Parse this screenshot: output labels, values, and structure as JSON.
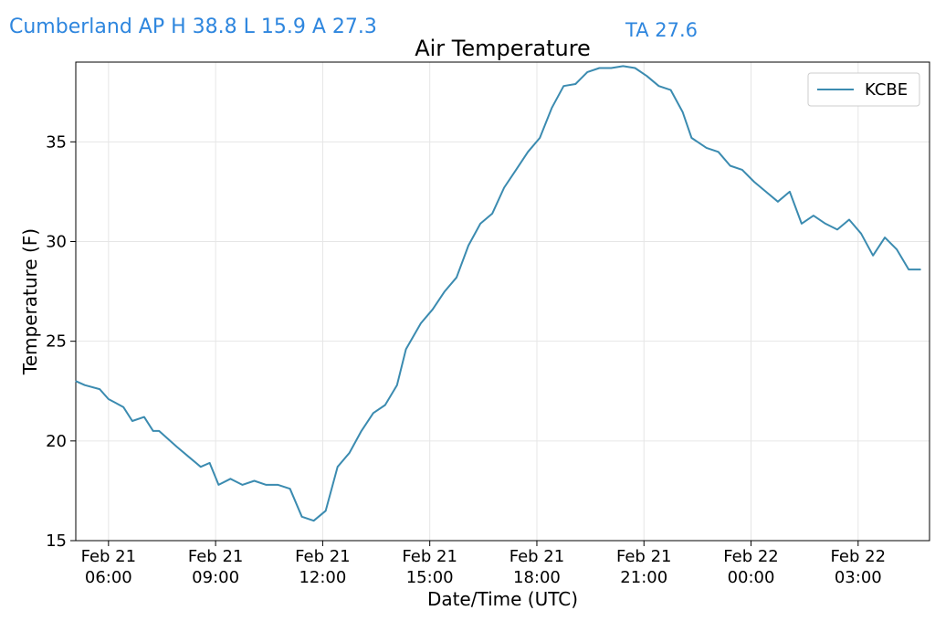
{
  "header": {
    "stats_line": "Cumberland AP H 38.8 L 15.9 A 27.3",
    "ta_line": "TA 27.6"
  },
  "colors": {
    "header_text": "#2e86de",
    "series_line": "#3b8bb0",
    "grid": "#e6e6e6"
  },
  "chart_data": {
    "type": "line",
    "title": "Air Temperature",
    "xlabel": "Date/Time (UTC)",
    "ylabel": "Temperature (F)",
    "grid": true,
    "legend_position": "top-right",
    "ylim": [
      15,
      39
    ],
    "xlim": [
      "2021-02-21 05:05",
      "2021-02-22 05:00"
    ],
    "y_ticks": [
      15,
      20,
      25,
      30,
      35
    ],
    "x_ticks": [
      {
        "time": "2021-02-21 06:00",
        "line1": "Feb 21",
        "line2": "06:00"
      },
      {
        "time": "2021-02-21 09:00",
        "line1": "Feb 21",
        "line2": "09:00"
      },
      {
        "time": "2021-02-21 12:00",
        "line1": "Feb 21",
        "line2": "12:00"
      },
      {
        "time": "2021-02-21 15:00",
        "line1": "Feb 21",
        "line2": "15:00"
      },
      {
        "time": "2021-02-21 18:00",
        "line1": "Feb 21",
        "line2": "18:00"
      },
      {
        "time": "2021-02-21 21:00",
        "line1": "Feb 21",
        "line2": "21:00"
      },
      {
        "time": "2021-02-22 00:00",
        "line1": "Feb 22",
        "line2": "00:00"
      },
      {
        "time": "2021-02-22 03:00",
        "line1": "Feb 22",
        "line2": "03:00"
      }
    ],
    "series": [
      {
        "name": "KCBE",
        "x": [
          "2021-02-21 05:05",
          "2021-02-21 05:20",
          "2021-02-21 05:45",
          "2021-02-21 06:00",
          "2021-02-21 06:25",
          "2021-02-21 06:40",
          "2021-02-21 07:00",
          "2021-02-21 07:15",
          "2021-02-21 07:25",
          "2021-02-21 07:55",
          "2021-02-21 08:15",
          "2021-02-21 08:35",
          "2021-02-21 08:50",
          "2021-02-21 09:05",
          "2021-02-21 09:25",
          "2021-02-21 09:45",
          "2021-02-21 10:05",
          "2021-02-21 10:25",
          "2021-02-21 10:45",
          "2021-02-21 11:05",
          "2021-02-21 11:25",
          "2021-02-21 11:45",
          "2021-02-21 12:05",
          "2021-02-21 12:25",
          "2021-02-21 12:45",
          "2021-02-21 13:05",
          "2021-02-21 13:25",
          "2021-02-21 13:45",
          "2021-02-21 14:05",
          "2021-02-21 14:20",
          "2021-02-21 14:45",
          "2021-02-21 15:05",
          "2021-02-21 15:25",
          "2021-02-21 15:45",
          "2021-02-21 16:05",
          "2021-02-21 16:25",
          "2021-02-21 16:45",
          "2021-02-21 17:05",
          "2021-02-21 17:25",
          "2021-02-21 17:45",
          "2021-02-21 18:05",
          "2021-02-21 18:25",
          "2021-02-21 18:45",
          "2021-02-21 19:05",
          "2021-02-21 19:25",
          "2021-02-21 19:45",
          "2021-02-21 20:05",
          "2021-02-21 20:25",
          "2021-02-21 20:45",
          "2021-02-21 21:05",
          "2021-02-21 21:25",
          "2021-02-21 21:45",
          "2021-02-21 22:05",
          "2021-02-21 22:20",
          "2021-02-21 22:45",
          "2021-02-21 23:05",
          "2021-02-21 23:25",
          "2021-02-21 23:45",
          "2021-02-22 00:05",
          "2021-02-22 00:25",
          "2021-02-22 00:45",
          "2021-02-22 01:05",
          "2021-02-22 01:25",
          "2021-02-22 01:45",
          "2021-02-22 02:05",
          "2021-02-22 02:25",
          "2021-02-22 02:45",
          "2021-02-22 03:05",
          "2021-02-22 03:25",
          "2021-02-22 03:45",
          "2021-02-22 04:05",
          "2021-02-22 04:25",
          "2021-02-22 04:45"
        ],
        "y": [
          23.0,
          22.8,
          22.6,
          22.1,
          21.7,
          21.0,
          21.2,
          20.5,
          20.5,
          19.7,
          19.2,
          18.7,
          18.9,
          17.8,
          18.1,
          17.8,
          18.0,
          17.8,
          17.8,
          17.6,
          16.2,
          16.0,
          16.5,
          18.7,
          19.4,
          20.5,
          21.4,
          21.8,
          22.8,
          24.6,
          25.9,
          26.6,
          27.5,
          28.2,
          29.8,
          30.9,
          31.4,
          32.7,
          33.6,
          34.5,
          35.2,
          36.7,
          37.8,
          37.9,
          38.5,
          38.7,
          38.7,
          38.8,
          38.7,
          38.3,
          37.8,
          37.6,
          36.5,
          35.2,
          34.7,
          34.5,
          33.8,
          33.6,
          33.0,
          32.5,
          32.0,
          32.5,
          30.9,
          31.3,
          30.9,
          30.6,
          31.1,
          30.4,
          29.3,
          30.2,
          29.6,
          28.6,
          28.6
        ]
      }
    ]
  }
}
